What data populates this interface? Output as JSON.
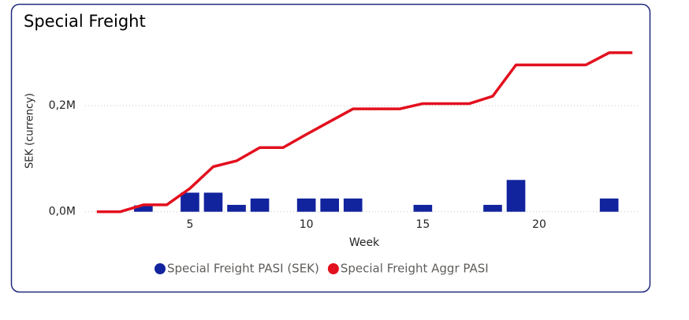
{
  "chart_data": {
    "type": "bar-line",
    "title": "Special Freight",
    "x_label": "Week",
    "y_label": "SEK (currency)",
    "x": [
      1,
      2,
      3,
      4,
      5,
      6,
      7,
      8,
      9,
      10,
      11,
      12,
      13,
      14,
      15,
      16,
      17,
      18,
      19,
      20,
      21,
      22,
      23,
      24
    ],
    "series": [
      {
        "name": "Special Freight PASI (SEK)",
        "color": "#12239e",
        "kind": "bar",
        "values": [
          null,
          null,
          12000,
          null,
          36000,
          36000,
          13000,
          25000,
          null,
          25000,
          25000,
          25000,
          null,
          null,
          13000,
          null,
          null,
          13000,
          60000,
          null,
          null,
          null,
          25000,
          null
        ]
      },
      {
        "name": "Special Freight Aggr PASI",
        "color": "#e3101e",
        "kind": "line",
        "values": [
          0,
          0,
          13000,
          13000,
          44000,
          85000,
          96000,
          121000,
          121000,
          146000,
          170000,
          194000,
          194000,
          194000,
          204000,
          204000,
          204000,
          218000,
          277000,
          277000,
          277000,
          277000,
          300000,
          300000
        ]
      }
    ],
    "xlim": [
      0.5,
      24.5
    ],
    "xticks": [
      5,
      10,
      15,
      20
    ],
    "ylim": [
      -2000,
      340000
    ],
    "yticks": [
      {
        "value": 0,
        "label": "0,0M"
      },
      {
        "value": 200000,
        "label": "0,2M"
      }
    ],
    "grid": true
  }
}
